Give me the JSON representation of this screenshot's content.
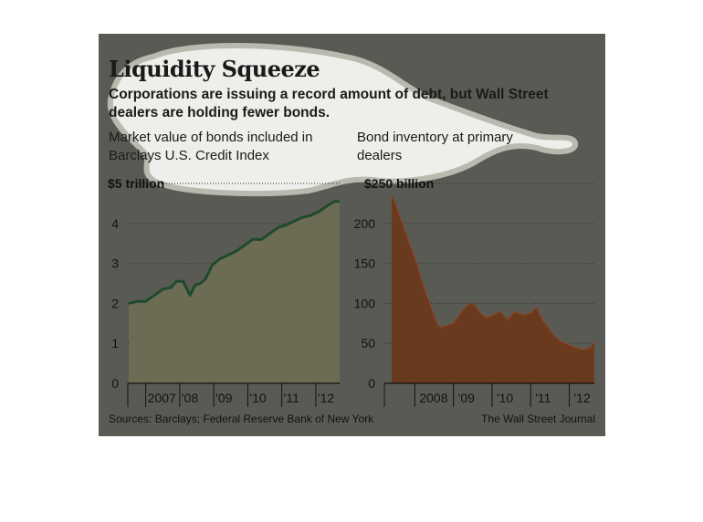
{
  "title": "Liquidity Squeeze",
  "dek": "Corporations are issuing a record amount of debt, but Wall Street dealers are holding fewer bonds.",
  "source": "Sources: Barclays; Federal Reserve Bank of New York",
  "credit": "The Wall Street Journal",
  "colors": {
    "panel": "#5a5a55",
    "overlay": "#f3f3ef",
    "left_fill": "#6c6c54",
    "left_line": "#1f4a2e",
    "right_fill": "#6a3a1e",
    "right_line": "#8a4420"
  },
  "chart_data": [
    {
      "type": "area",
      "title": "Market value of bonds included in Barclays U.S. Credit Index",
      "unit_label": "$5 trillion",
      "ylim": [
        0,
        5
      ],
      "yticks": [
        "0",
        "1",
        "2",
        "3",
        "4",
        "$5 trillion"
      ],
      "xlim": [
        2006.5,
        2012.7
      ],
      "xtick_labels": [
        "2007",
        "'08",
        "'09",
        "'10",
        "'11",
        "'12"
      ],
      "grid": true,
      "series": [
        {
          "x": [
            2006.5,
            2006.75,
            2007.0,
            2007.25,
            2007.5,
            2007.75,
            2007.9,
            2008.1,
            2008.3,
            2008.45,
            2008.6,
            2008.75,
            2008.95,
            2009.15,
            2009.4,
            2009.65,
            2009.9,
            2010.15,
            2010.4,
            2010.65,
            2010.9,
            2011.1,
            2011.35,
            2011.6,
            2011.85,
            2012.1,
            2012.35,
            2012.55,
            2012.7
          ],
          "values": [
            2.0,
            2.05,
            2.05,
            2.2,
            2.35,
            2.4,
            2.55,
            2.55,
            2.2,
            2.45,
            2.5,
            2.6,
            2.95,
            3.1,
            3.2,
            3.3,
            3.45,
            3.6,
            3.6,
            3.75,
            3.9,
            3.95,
            4.05,
            4.15,
            4.2,
            4.3,
            4.45,
            4.55,
            4.55
          ]
        }
      ]
    },
    {
      "type": "area",
      "title": "Bond inventory at primary dealers",
      "unit_label": "$250 billion",
      "ylim": [
        0,
        250
      ],
      "yticks": [
        "0",
        "50",
        "100",
        "150",
        "200",
        "$250 billion"
      ],
      "xlim": [
        2007.4,
        2012.65
      ],
      "xtick_labels": [
        "2008",
        "'09",
        "'10",
        "'11",
        "'12"
      ],
      "grid": true,
      "series": [
        {
          "x": [
            2007.4,
            2007.5,
            2007.6,
            2007.75,
            2007.9,
            2008.05,
            2008.2,
            2008.35,
            2008.5,
            2008.6,
            2008.7,
            2008.8,
            2009.0,
            2009.15,
            2009.3,
            2009.45,
            2009.55,
            2009.7,
            2009.85,
            2010.0,
            2010.2,
            2010.4,
            2010.6,
            2010.8,
            2011.0,
            2011.15,
            2011.3,
            2011.45,
            2011.6,
            2011.8,
            2012.0,
            2012.2,
            2012.4,
            2012.55,
            2012.65
          ],
          "values": [
            235,
            225,
            210,
            190,
            170,
            150,
            125,
            105,
            85,
            72,
            70,
            72,
            75,
            85,
            95,
            100,
            98,
            88,
            82,
            85,
            90,
            80,
            90,
            85,
            88,
            95,
            80,
            70,
            60,
            52,
            48,
            44,
            42,
            45,
            52
          ]
        }
      ]
    }
  ]
}
